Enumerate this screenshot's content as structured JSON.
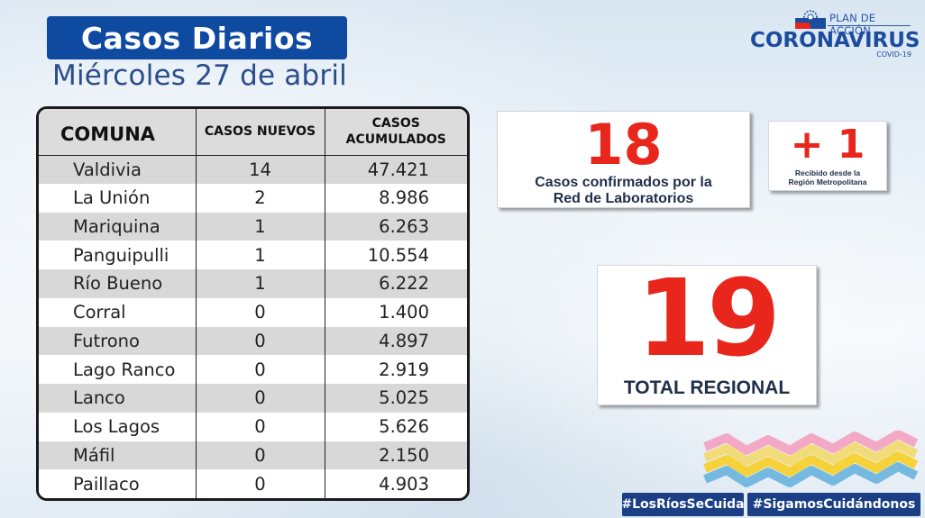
{
  "header": {
    "title": "Casos Diarios",
    "date": "Miércoles 27 de abril"
  },
  "logo": {
    "plan": "PLAN DE ACCIÓN",
    "main": "CORONAVIRUS",
    "sub": "COVID-19"
  },
  "table": {
    "headers": {
      "comuna": "COMUNA",
      "nuevos": "CASOS NUEVOS",
      "acumulados_1": "CASOS",
      "acumulados_2": "ACUMULADOS"
    },
    "rows": [
      {
        "comuna": "Valdivia",
        "nuevos": "14",
        "acumulados": "47.421"
      },
      {
        "comuna": "La Unión",
        "nuevos": "2",
        "acumulados": "8.986"
      },
      {
        "comuna": "Mariquina",
        "nuevos": "1",
        "acumulados": "6.263"
      },
      {
        "comuna": "Panguipulli",
        "nuevos": "1",
        "acumulados": "10.554"
      },
      {
        "comuna": "Río Bueno",
        "nuevos": "1",
        "acumulados": "6.222"
      },
      {
        "comuna": "Corral",
        "nuevos": "0",
        "acumulados": "1.400"
      },
      {
        "comuna": "Futrono",
        "nuevos": "0",
        "acumulados": "4.897"
      },
      {
        "comuna": "Lago Ranco",
        "nuevos": "0",
        "acumulados": "2.919"
      },
      {
        "comuna": "Lanco",
        "nuevos": "0",
        "acumulados": "5.025"
      },
      {
        "comuna": "Los Lagos",
        "nuevos": "0",
        "acumulados": "5.626"
      },
      {
        "comuna": "Máfil",
        "nuevos": "0",
        "acumulados": "2.150"
      },
      {
        "comuna": "Paillaco",
        "nuevos": "0",
        "acumulados": "4.903"
      }
    ]
  },
  "stats": {
    "lab": {
      "value": "18",
      "label_1": "Casos confirmados  por la",
      "label_2": "Red de Laboratorios"
    },
    "rm": {
      "value": "+ 1",
      "label_1": "Recibido desde la",
      "label_2": "Región Metropolitana"
    },
    "total": {
      "value": "19",
      "label": "TOTAL REGIONAL"
    }
  },
  "hashtags": [
    "#LosRíosSeCuida",
    "#SigamosCuidándonos"
  ],
  "colors": {
    "title_bg": "#0f4aa1",
    "accent_red": "#e8261b",
    "hashtag_bg": "#1a3f84"
  }
}
